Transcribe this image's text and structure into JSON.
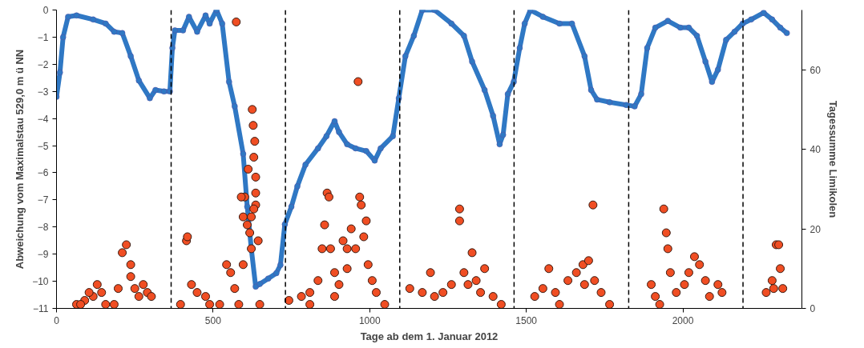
{
  "chart_data": {
    "type": "line",
    "xlabel": "Tage ab dem 1. Januar 2012",
    "ylabel": "Abweichung vom Maximalstau 529,0 m ü NN",
    "y2label": "Tagessumme Limikolen",
    "xlim": [
      0,
      2380
    ],
    "xticks": [
      0,
      500,
      1000,
      1500,
      2000
    ],
    "ylim": [
      -11,
      0
    ],
    "yticks": [
      -11,
      -10,
      -9,
      -8,
      -7,
      -6,
      -5,
      -4,
      -3,
      -2,
      -1,
      0
    ],
    "y2lim": [
      0,
      75
    ],
    "y2ticks": [
      0,
      20,
      40,
      60
    ],
    "grid": false,
    "marker": "circle",
    "ref_lines": [
      {
        "axis": "x",
        "value": 366,
        "line_style": "dashed",
        "color": "#000000"
      },
      {
        "axis": "x",
        "value": 731,
        "line_style": "dashed",
        "color": "#000000"
      },
      {
        "axis": "x",
        "value": 1096,
        "line_style": "dashed",
        "color": "#000000"
      },
      {
        "axis": "x",
        "value": 1461,
        "line_style": "dashed",
        "color": "#000000"
      },
      {
        "axis": "x",
        "value": 1827,
        "line_style": "dashed",
        "color": "#000000"
      },
      {
        "axis": "x",
        "value": 2192,
        "line_style": "dashed",
        "color": "#000000"
      }
    ],
    "series": [
      {
        "color": "#2f78c4",
        "x": [
          0,
          11,
          21,
          37,
          64,
          117,
          157,
          184,
          210,
          237,
          263,
          298,
          316,
          343,
          362,
          370,
          378,
          404,
          423,
          449,
          476,
          489,
          511,
          529,
          551,
          569,
          596,
          609,
          622,
          636,
          649,
          676,
          702,
          715,
          729,
          750,
          769,
          795,
          835,
          862,
          888,
          902,
          928,
          955,
          989,
          1016,
          1035,
          1074,
          1093,
          1114,
          1141,
          1168,
          1207,
          1261,
          1301,
          1327,
          1367,
          1394,
          1415,
          1426,
          1441,
          1460,
          1479,
          1495,
          1513,
          1553,
          1606,
          1646,
          1686,
          1707,
          1726,
          1766,
          1819,
          1846,
          1867,
          1886,
          1912,
          1952,
          1992,
          2019,
          2045,
          2072,
          2093,
          2112,
          2138,
          2165,
          2191,
          2218,
          2258,
          2285,
          2311,
          2332
        ],
        "values": [
          -3.2,
          -2.3,
          -1.0,
          -0.25,
          -0.2,
          -0.35,
          -0.5,
          -0.8,
          -0.85,
          -1.7,
          -2.6,
          -3.25,
          -2.95,
          -3.0,
          -3.0,
          -1.4,
          -0.75,
          -0.75,
          -0.25,
          -0.8,
          -0.2,
          -0.5,
          0,
          -0.5,
          -2.65,
          -3.55,
          -5.3,
          -7.25,
          -8.8,
          -10.2,
          -10.1,
          -9.9,
          -9.7,
          -9.4,
          -7.9,
          -7.25,
          -6.5,
          -5.7,
          -5.1,
          -4.65,
          -4.1,
          -4.5,
          -4.95,
          -5.1,
          -5.2,
          -5.55,
          -5.1,
          -4.65,
          -3.25,
          -1.7,
          -0.95,
          0,
          0,
          -0.5,
          -0.95,
          -1.9,
          -2.95,
          -3.9,
          -4.95,
          -4.6,
          -3.1,
          -2.65,
          -1.4,
          -0.5,
          0,
          -0.25,
          -0.5,
          -0.5,
          -1.7,
          -2.95,
          -3.3,
          -3.4,
          -3.5,
          -3.55,
          -3.1,
          -1.4,
          -0.65,
          -0.4,
          -0.65,
          -0.65,
          -0.95,
          -1.9,
          -2.65,
          -2.2,
          -1.1,
          -0.8,
          -0.5,
          -0.35,
          -0.1,
          -0.35,
          -0.65,
          -0.85
        ]
      },
      {
        "type": "scatter",
        "axis": "y2",
        "color": "#f04e23",
        "x": [
          64,
          90,
          117,
          130,
          144,
          157,
          210,
          223,
          237,
          237,
          250,
          277,
          290,
          303,
          184,
          197,
          263,
          77,
          104,
          396,
          415,
          418,
          431,
          449,
          476,
          489,
          521,
          543,
          556,
          569,
          574,
          582,
          596,
          601,
          612,
          617,
          622,
          625,
          628,
          630,
          633,
          636,
          636,
          636,
          630,
          644,
          622,
          609,
          590,
          596,
          649,
          742,
          782,
          809,
          835,
          848,
          856,
          864,
          870,
          875,
          888,
          902,
          915,
          928,
          941,
          955,
          963,
          968,
          973,
          981,
          989,
          995,
          1008,
          1021,
          1048,
          809,
          888,
          928,
          1128,
          1168,
          1194,
          1234,
          1261,
          1287,
          1287,
          1301,
          1314,
          1327,
          1340,
          1354,
          1367,
          1394,
          1420,
          1207,
          1527,
          1553,
          1572,
          1593,
          1606,
          1633,
          1660,
          1681,
          1699,
          1713,
          1718,
          1739,
          1766,
          1686,
          1912,
          1939,
          1947,
          1952,
          1960,
          1979,
          2005,
          2019,
          2037,
          2053,
          2072,
          2085,
          2112,
          2125,
          1926,
          1899,
          2266,
          2285,
          2298,
          2306,
          2311,
          2319,
          2290
        ],
        "values": [
          1,
          2,
          3,
          6,
          4,
          1,
          14,
          16,
          8,
          11,
          5,
          6,
          4,
          3,
          1,
          5,
          3,
          1,
          4,
          1,
          17,
          18,
          6,
          4,
          3,
          1,
          1,
          11,
          9,
          5,
          72,
          1,
          23,
          28,
          35,
          19,
          15,
          50,
          46,
          38,
          42,
          33,
          29,
          26,
          25,
          17,
          23,
          21,
          28,
          11,
          1,
          2,
          3,
          4,
          7,
          15,
          21,
          29,
          28,
          15,
          9,
          6,
          17,
          15,
          20,
          15,
          57,
          28,
          26,
          18,
          22,
          11,
          7,
          4,
          1,
          1,
          3,
          10,
          5,
          4,
          9,
          4,
          6,
          25,
          22,
          9,
          6,
          14,
          7,
          4,
          10,
          3,
          1,
          3,
          3,
          5,
          10,
          4,
          1,
          7,
          9,
          11,
          12,
          26,
          7,
          4,
          1,
          6,
          3,
          25,
          19,
          15,
          9,
          4,
          6,
          9,
          13,
          11,
          7,
          3,
          6,
          4,
          1,
          6,
          4,
          7,
          16,
          16,
          10,
          5,
          5
        ]
      }
    ]
  }
}
